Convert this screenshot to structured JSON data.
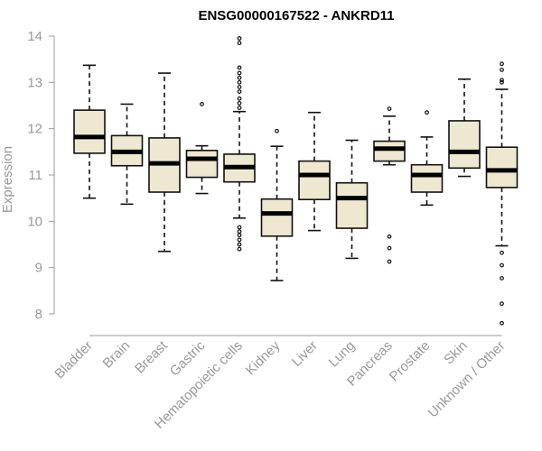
{
  "chart_data": {
    "type": "boxplot",
    "title": "ENSG00000167522 - ANKRD11",
    "ylabel": "Expression",
    "xlabel": "",
    "ylim": [
      7.7,
      14.1
    ],
    "yticks": [
      8,
      9,
      10,
      11,
      12,
      13,
      14
    ],
    "categories": [
      "Bladder",
      "Brain",
      "Breast",
      "Gastric",
      "Hematopoietic cells",
      "Kidney",
      "Liver",
      "Lung",
      "Pancreas",
      "Prostate",
      "Skin",
      "Unknown / Other"
    ],
    "boxes": [
      {
        "min": 10.5,
        "q1": 11.47,
        "median": 11.82,
        "q3": 12.4,
        "max": 13.37,
        "outliers": []
      },
      {
        "min": 10.37,
        "q1": 11.2,
        "median": 11.5,
        "q3": 11.85,
        "max": 12.53,
        "outliers": []
      },
      {
        "min": 9.35,
        "q1": 10.63,
        "median": 11.25,
        "q3": 11.8,
        "max": 13.2,
        "outliers": []
      },
      {
        "min": 10.6,
        "q1": 10.95,
        "median": 11.35,
        "q3": 11.53,
        "max": 11.63,
        "outliers": [
          12.53
        ]
      },
      {
        "min": 10.07,
        "q1": 10.85,
        "median": 11.17,
        "q3": 11.45,
        "max": 12.37,
        "outliers": [
          9.4,
          9.5,
          9.6,
          9.7,
          9.78,
          9.87,
          12.45,
          12.55,
          12.65,
          12.8,
          12.9,
          13.0,
          13.1,
          13.2,
          13.32,
          13.85,
          13.95
        ]
      },
      {
        "min": 8.72,
        "q1": 9.68,
        "median": 10.17,
        "q3": 10.48,
        "max": 11.62,
        "outliers": [
          11.95
        ]
      },
      {
        "min": 9.8,
        "q1": 10.47,
        "median": 11.0,
        "q3": 11.3,
        "max": 12.35,
        "outliers": []
      },
      {
        "min": 9.2,
        "q1": 9.85,
        "median": 10.5,
        "q3": 10.83,
        "max": 11.75,
        "outliers": []
      },
      {
        "min": 11.22,
        "q1": 11.3,
        "median": 11.57,
        "q3": 11.73,
        "max": 12.27,
        "outliers": [
          9.13,
          9.42,
          9.67,
          12.43
        ]
      },
      {
        "min": 10.35,
        "q1": 10.63,
        "median": 11.0,
        "q3": 11.22,
        "max": 11.82,
        "outliers": [
          12.35
        ]
      },
      {
        "min": 10.97,
        "q1": 11.15,
        "median": 11.5,
        "q3": 12.17,
        "max": 13.07,
        "outliers": []
      },
      {
        "min": 9.47,
        "q1": 10.73,
        "median": 11.1,
        "q3": 11.6,
        "max": 12.85,
        "outliers": [
          7.8,
          8.22,
          8.77,
          9.05,
          9.32,
          13.0,
          13.05,
          13.27,
          13.4
        ]
      }
    ],
    "grid": false,
    "legend": "none"
  }
}
